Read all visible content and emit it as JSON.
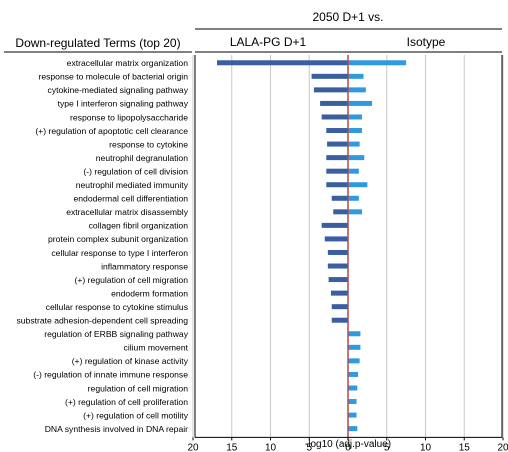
{
  "header": {
    "comparison": "2050 D+1 vs.",
    "terms_heading": "Down-regulated Terms (top 20)"
  },
  "chart_data": {
    "type": "bar",
    "orientation": "horizontal",
    "xlabel": "-log10 (adj.p-value)",
    "panels": [
      {
        "name": "LALA-PG D+1",
        "direction": "left",
        "xlim": [
          20,
          0
        ],
        "ticks": [
          20,
          15,
          10,
          5,
          0
        ]
      },
      {
        "name": "Isotype",
        "direction": "right",
        "xlim": [
          0,
          20
        ],
        "ticks": [
          5,
          10,
          15,
          20
        ]
      }
    ],
    "grid": true,
    "categories": [
      "extracellular matrix organization",
      "response to molecule of bacterial origin",
      "cytokine-mediated signaling pathway",
      "type I interferon signaling pathway",
      "response to lipopolysaccharide",
      "(+) regulation of apoptotic cell clearance",
      "response to cytokine",
      "neutrophil degranulation",
      "(-) regulation of cell division",
      "neutrophil mediated immunity",
      "endodermal cell differentiation",
      "extracellular matrix disassembly",
      "collagen fibril organization",
      "protein complex subunit organization",
      "cellular response to type I interferon",
      "inflammatory response",
      "(+) regulation of cell migration",
      "endoderm formation",
      "cellular response to cytokine stimulus",
      "substrate adhesion-dependent cell spreading",
      "regulation of ERBB signaling pathway",
      "cilium movement",
      "(+) regulation of kinase activity",
      "(-) regulation of innate immune response",
      "regulation of cell migration",
      "(+) regulation of cell proliferation",
      "(+) regulation of cell motility",
      "DNA synthesis involved in DNA repair"
    ],
    "series": [
      {
        "name": "LALA-PG D+1",
        "color": "#3a5fa0",
        "values": [
          16.9,
          4.7,
          4.4,
          3.6,
          3.4,
          2.8,
          2.7,
          2.8,
          2.8,
          2.8,
          2.1,
          1.9,
          3.4,
          3.0,
          2.6,
          2.6,
          2.5,
          2.2,
          2.1,
          2.1,
          0,
          0,
          0,
          0,
          0,
          0,
          0,
          0
        ]
      },
      {
        "name": "Isotype",
        "color": "#2f9ae0",
        "values": [
          7.5,
          2.0,
          2.3,
          3.1,
          1.8,
          1.8,
          1.5,
          2.1,
          1.4,
          2.5,
          1.4,
          1.8,
          0,
          0,
          0,
          0,
          0,
          0,
          0,
          0,
          1.6,
          1.6,
          1.5,
          1.3,
          1.2,
          1.1,
          1.1,
          1.2
        ]
      }
    ],
    "zero_line_color": "#b04a4a"
  }
}
